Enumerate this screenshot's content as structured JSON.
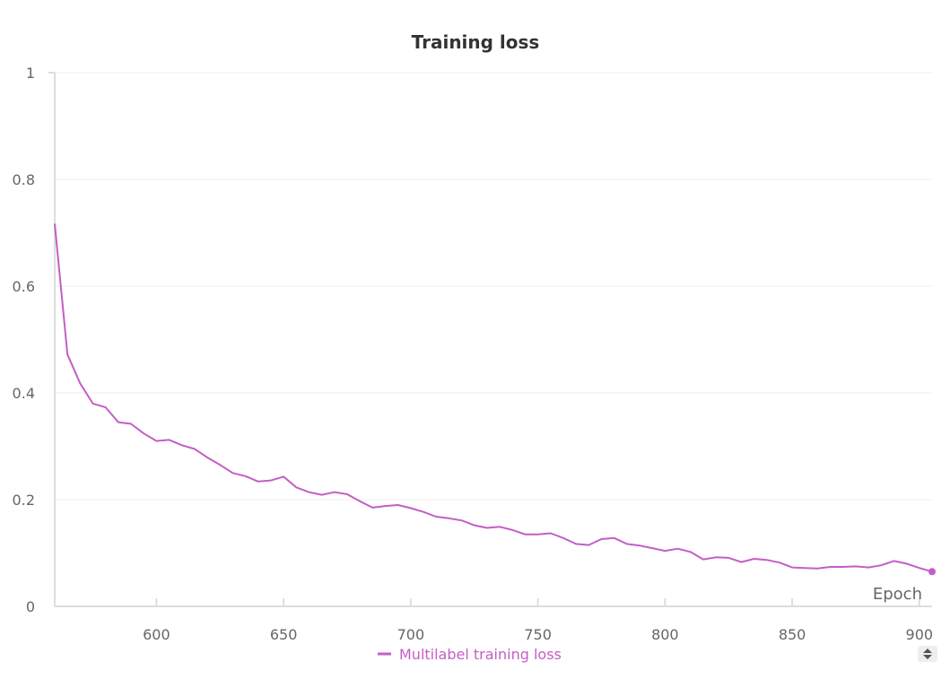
{
  "chart_data": {
    "type": "line",
    "title": "Training loss",
    "xlabel": "Epoch",
    "ylabel": "",
    "xlim": [
      560,
      905
    ],
    "ylim": [
      0,
      1
    ],
    "x_ticks": [
      "600",
      "650",
      "700",
      "750",
      "800",
      "850",
      "900"
    ],
    "y_ticks": [
      "0",
      "0.2",
      "0.4",
      "0.6",
      "0.8",
      "1"
    ],
    "grid": true,
    "legend": "bottom-center",
    "series": [
      {
        "name": "Multilabel training loss",
        "color": "#c45ec6",
        "x": [
          560,
          565,
          570,
          575,
          580,
          585,
          590,
          595,
          600,
          605,
          610,
          615,
          620,
          625,
          630,
          635,
          640,
          645,
          650,
          655,
          660,
          665,
          670,
          675,
          680,
          685,
          690,
          695,
          700,
          705,
          710,
          715,
          720,
          725,
          730,
          735,
          740,
          745,
          750,
          755,
          760,
          765,
          770,
          775,
          780,
          785,
          790,
          795,
          800,
          805,
          810,
          815,
          820,
          825,
          830,
          835,
          840,
          845,
          850,
          855,
          860,
          865,
          870,
          875,
          880,
          885,
          890,
          895,
          900,
          905
        ],
        "y": [
          0.717,
          0.472,
          0.418,
          0.38,
          0.373,
          0.345,
          0.342,
          0.324,
          0.31,
          0.312,
          0.302,
          0.295,
          0.279,
          0.265,
          0.25,
          0.244,
          0.234,
          0.236,
          0.243,
          0.223,
          0.214,
          0.209,
          0.214,
          0.21,
          0.197,
          0.185,
          0.188,
          0.19,
          0.184,
          0.177,
          0.168,
          0.165,
          0.161,
          0.152,
          0.147,
          0.149,
          0.143,
          0.135,
          0.135,
          0.137,
          0.128,
          0.117,
          0.115,
          0.126,
          0.128,
          0.117,
          0.114,
          0.109,
          0.104,
          0.108,
          0.102,
          0.088,
          0.092,
          0.091,
          0.083,
          0.089,
          0.087,
          0.082,
          0.073,
          0.072,
          0.071,
          0.074,
          0.074,
          0.075,
          0.073,
          0.077,
          0.085,
          0.08,
          0.072,
          0.065
        ]
      }
    ]
  }
}
